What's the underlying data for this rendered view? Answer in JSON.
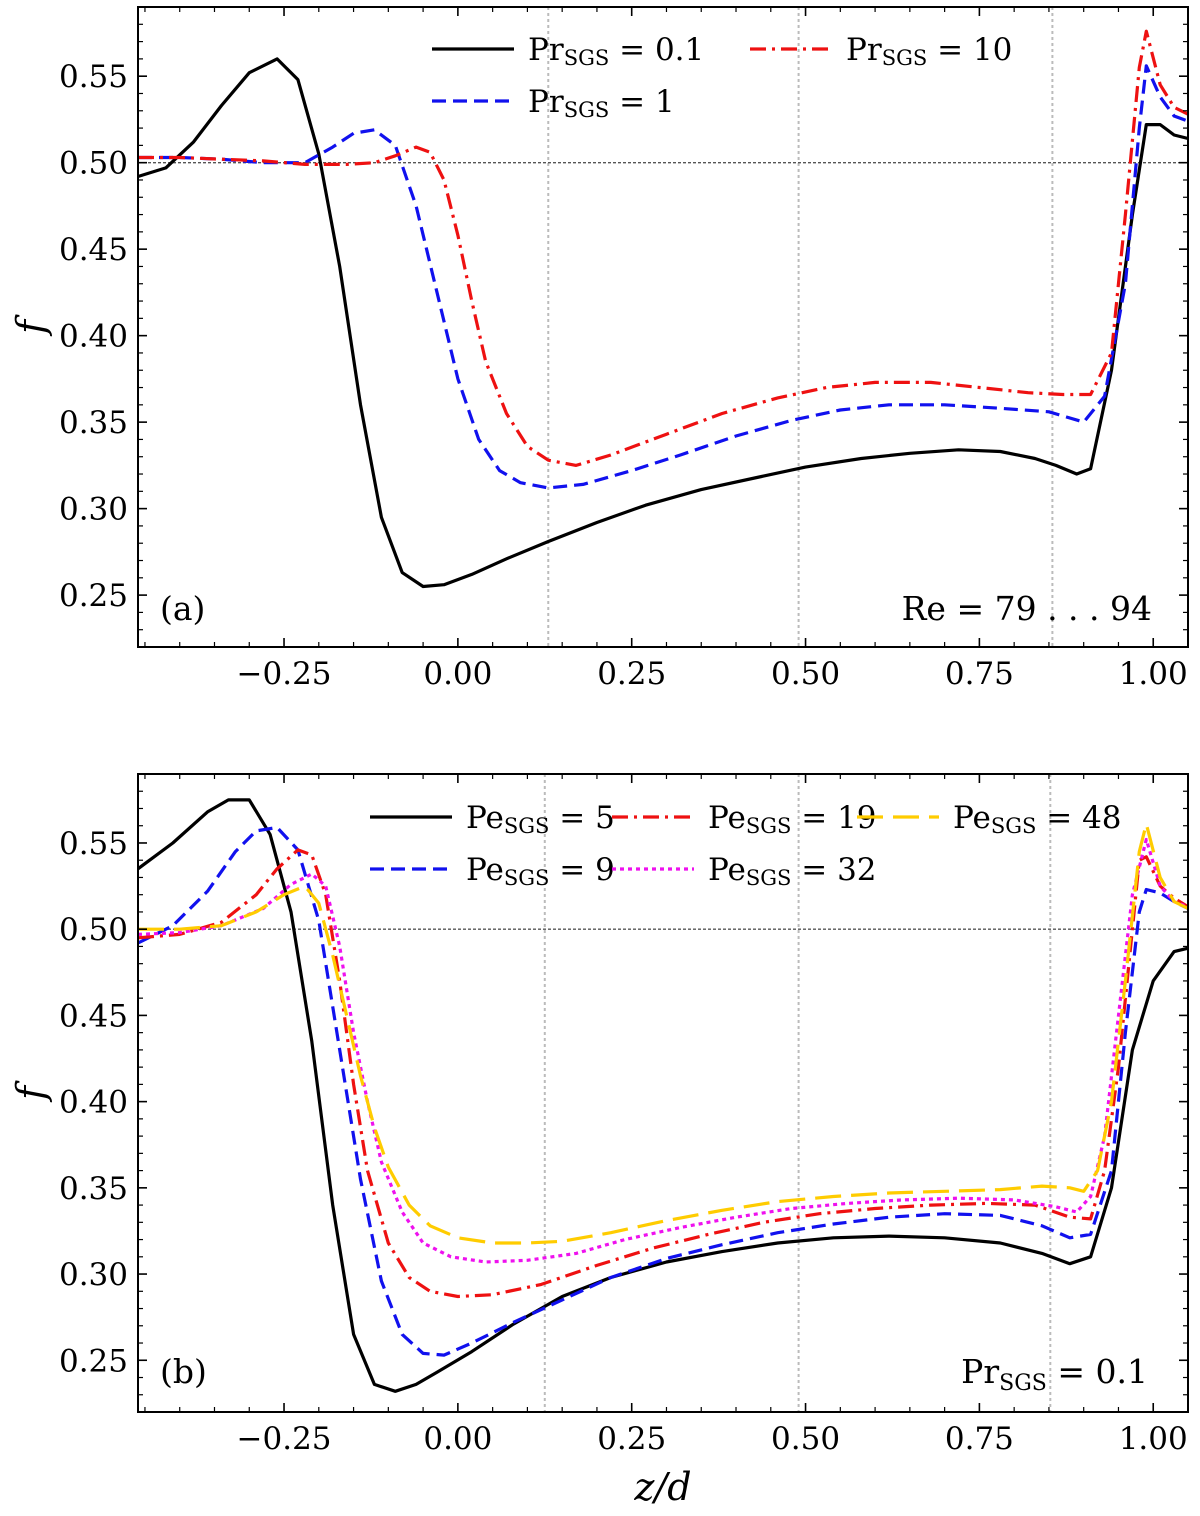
{
  "chart_data": [
    {
      "id": "a",
      "type": "line",
      "xlabel": "",
      "ylabel": "f",
      "xlim": [
        -0.46,
        1.05
      ],
      "ylim": [
        0.22,
        0.59
      ],
      "xticks": [
        -0.25,
        0.0,
        0.25,
        0.5,
        0.75,
        1.0
      ],
      "xtick_labels": [
        "−0.25",
        "0.00",
        "0.25",
        "0.50",
        "0.75",
        "1.00"
      ],
      "yticks": [
        0.25,
        0.3,
        0.35,
        0.4,
        0.45,
        0.5,
        0.55
      ],
      "ytick_labels": [
        "0.25",
        "0.30",
        "0.35",
        "0.40",
        "0.45",
        "0.50",
        "0.55"
      ],
      "hline": 0.5,
      "vlines": [
        0.13,
        0.49,
        0.855
      ],
      "panel_label": "(a)",
      "annotation": "Re = 79 . . . 94",
      "legend": {
        "placement": "top-right",
        "columns": 2
      },
      "series": [
        {
          "name": "Pr",
          "sub": "SGS",
          "value": "0.1",
          "color": "#000000",
          "dash": "solid",
          "x": [
            -0.46,
            -0.42,
            -0.38,
            -0.34,
            -0.3,
            -0.26,
            -0.23,
            -0.2,
            -0.17,
            -0.14,
            -0.11,
            -0.08,
            -0.05,
            -0.02,
            0.02,
            0.07,
            0.13,
            0.2,
            0.27,
            0.35,
            0.43,
            0.5,
            0.58,
            0.65,
            0.72,
            0.78,
            0.83,
            0.86,
            0.89,
            0.91,
            0.94,
            0.97,
            0.99,
            1.01,
            1.03,
            1.05
          ],
          "y": [
            0.492,
            0.497,
            0.512,
            0.533,
            0.552,
            0.56,
            0.548,
            0.505,
            0.44,
            0.36,
            0.295,
            0.263,
            0.255,
            0.256,
            0.262,
            0.271,
            0.281,
            0.292,
            0.302,
            0.311,
            0.318,
            0.324,
            0.329,
            0.332,
            0.334,
            0.333,
            0.329,
            0.325,
            0.32,
            0.323,
            0.38,
            0.47,
            0.522,
            0.522,
            0.516,
            0.514
          ]
        },
        {
          "name": "Pr",
          "sub": "SGS",
          "value": "1",
          "color": "#1111ee",
          "dash": "dashed",
          "x": [
            -0.46,
            -0.4,
            -0.34,
            -0.28,
            -0.22,
            -0.18,
            -0.15,
            -0.12,
            -0.09,
            -0.06,
            -0.03,
            0.0,
            0.03,
            0.06,
            0.09,
            0.13,
            0.18,
            0.25,
            0.32,
            0.4,
            0.48,
            0.55,
            0.62,
            0.7,
            0.78,
            0.85,
            0.9,
            0.93,
            0.96,
            0.98,
            0.99,
            1.01,
            1.03,
            1.05
          ],
          "y": [
            0.503,
            0.503,
            0.502,
            0.5,
            0.5,
            0.509,
            0.517,
            0.519,
            0.51,
            0.475,
            0.425,
            0.375,
            0.34,
            0.322,
            0.315,
            0.312,
            0.314,
            0.322,
            0.331,
            0.342,
            0.351,
            0.357,
            0.36,
            0.36,
            0.358,
            0.356,
            0.35,
            0.365,
            0.43,
            0.52,
            0.556,
            0.538,
            0.527,
            0.524
          ]
        },
        {
          "name": "Pr",
          "sub": "SGS",
          "value": "10",
          "color": "#ee1111",
          "dash": "dashdot",
          "x": [
            -0.46,
            -0.4,
            -0.34,
            -0.28,
            -0.22,
            -0.16,
            -0.12,
            -0.09,
            -0.06,
            -0.04,
            -0.02,
            0.0,
            0.02,
            0.04,
            0.07,
            0.1,
            0.13,
            0.17,
            0.22,
            0.3,
            0.38,
            0.46,
            0.53,
            0.6,
            0.68,
            0.75,
            0.82,
            0.87,
            0.91,
            0.94,
            0.96,
            0.98,
            0.99,
            1.01,
            1.03,
            1.05
          ],
          "y": [
            0.503,
            0.503,
            0.502,
            0.501,
            0.499,
            0.499,
            0.5,
            0.504,
            0.509,
            0.506,
            0.49,
            0.458,
            0.42,
            0.385,
            0.355,
            0.336,
            0.328,
            0.325,
            0.331,
            0.343,
            0.355,
            0.364,
            0.37,
            0.373,
            0.373,
            0.37,
            0.367,
            0.366,
            0.366,
            0.39,
            0.47,
            0.555,
            0.576,
            0.545,
            0.532,
            0.528
          ]
        }
      ]
    },
    {
      "id": "b",
      "type": "line",
      "xlabel": "z/d",
      "ylabel": "f",
      "xlim": [
        -0.46,
        1.05
      ],
      "ylim": [
        0.22,
        0.59
      ],
      "xticks": [
        -0.25,
        0.0,
        0.25,
        0.5,
        0.75,
        1.0
      ],
      "xtick_labels": [
        "−0.25",
        "0.00",
        "0.25",
        "0.50",
        "0.75",
        "1.00"
      ],
      "yticks": [
        0.25,
        0.3,
        0.35,
        0.4,
        0.45,
        0.5,
        0.55
      ],
      "ytick_labels": [
        "0.25",
        "0.30",
        "0.35",
        "0.40",
        "0.45",
        "0.50",
        "0.55"
      ],
      "hline": 0.5,
      "vlines": [
        0.125,
        0.49,
        0.852
      ],
      "panel_label": "(b)",
      "annotation_main": "Pr",
      "annotation_sub": "SGS",
      "annotation_tail": " = 0.1",
      "legend": {
        "placement": "top-right",
        "columns": 3
      },
      "series": [
        {
          "name": "Pe",
          "sub": "SGS",
          "value": "5",
          "color": "#000000",
          "dash": "solid",
          "x": [
            -0.46,
            -0.41,
            -0.36,
            -0.33,
            -0.3,
            -0.27,
            -0.24,
            -0.21,
            -0.18,
            -0.15,
            -0.12,
            -0.09,
            -0.06,
            -0.03,
            0.02,
            0.08,
            0.15,
            0.22,
            0.3,
            0.38,
            0.46,
            0.54,
            0.62,
            0.7,
            0.78,
            0.84,
            0.88,
            0.91,
            0.94,
            0.97,
            1.0,
            1.03,
            1.05
          ],
          "y": [
            0.535,
            0.55,
            0.568,
            0.575,
            0.575,
            0.555,
            0.51,
            0.435,
            0.34,
            0.265,
            0.236,
            0.232,
            0.236,
            0.243,
            0.255,
            0.271,
            0.287,
            0.298,
            0.307,
            0.313,
            0.318,
            0.321,
            0.322,
            0.321,
            0.318,
            0.312,
            0.306,
            0.31,
            0.35,
            0.43,
            0.47,
            0.487,
            0.489
          ]
        },
        {
          "name": "Pe",
          "sub": "SGS",
          "value": "9",
          "color": "#1111ee",
          "dash": "dashed",
          "x": [
            -0.46,
            -0.41,
            -0.36,
            -0.32,
            -0.29,
            -0.26,
            -0.23,
            -0.2,
            -0.17,
            -0.14,
            -0.11,
            -0.08,
            -0.05,
            -0.02,
            0.02,
            0.08,
            0.15,
            0.22,
            0.3,
            0.38,
            0.46,
            0.54,
            0.62,
            0.7,
            0.78,
            0.84,
            0.88,
            0.91,
            0.94,
            0.96,
            0.98,
            0.99,
            1.01,
            1.03,
            1.05
          ],
          "y": [
            0.492,
            0.502,
            0.522,
            0.545,
            0.557,
            0.559,
            0.546,
            0.505,
            0.43,
            0.355,
            0.296,
            0.265,
            0.254,
            0.253,
            0.26,
            0.272,
            0.285,
            0.298,
            0.309,
            0.317,
            0.324,
            0.329,
            0.333,
            0.335,
            0.334,
            0.328,
            0.321,
            0.323,
            0.36,
            0.44,
            0.51,
            0.523,
            0.521,
            0.516,
            0.512
          ]
        },
        {
          "name": "Pe",
          "sub": "SGS",
          "value": "19",
          "color": "#ee1111",
          "dash": "dashdot",
          "x": [
            -0.46,
            -0.4,
            -0.34,
            -0.29,
            -0.26,
            -0.23,
            -0.21,
            -0.19,
            -0.17,
            -0.15,
            -0.13,
            -0.1,
            -0.07,
            -0.04,
            0.0,
            0.05,
            0.12,
            0.2,
            0.28,
            0.36,
            0.44,
            0.52,
            0.6,
            0.68,
            0.76,
            0.83,
            0.88,
            0.91,
            0.93,
            0.95,
            0.97,
            0.98,
            0.99,
            1.01,
            1.03,
            1.05
          ],
          "y": [
            0.495,
            0.497,
            0.504,
            0.52,
            0.535,
            0.546,
            0.543,
            0.52,
            0.47,
            0.41,
            0.36,
            0.318,
            0.298,
            0.29,
            0.287,
            0.288,
            0.294,
            0.305,
            0.315,
            0.323,
            0.33,
            0.335,
            0.338,
            0.34,
            0.341,
            0.34,
            0.333,
            0.332,
            0.36,
            0.42,
            0.5,
            0.54,
            0.542,
            0.525,
            0.518,
            0.513
          ]
        },
        {
          "name": "Pe",
          "sub": "SGS",
          "value": "32",
          "color": "#ee11ee",
          "dash": "dotted",
          "x": [
            -0.46,
            -0.4,
            -0.34,
            -0.28,
            -0.24,
            -0.21,
            -0.19,
            -0.17,
            -0.15,
            -0.13,
            -0.11,
            -0.08,
            -0.05,
            -0.01,
            0.04,
            0.1,
            0.17,
            0.24,
            0.32,
            0.4,
            0.48,
            0.56,
            0.64,
            0.72,
            0.8,
            0.86,
            0.89,
            0.91,
            0.93,
            0.95,
            0.97,
            0.99,
            1.01,
            1.03,
            1.05
          ],
          "y": [
            0.497,
            0.498,
            0.502,
            0.512,
            0.526,
            0.532,
            0.525,
            0.49,
            0.44,
            0.4,
            0.365,
            0.336,
            0.318,
            0.31,
            0.307,
            0.308,
            0.312,
            0.32,
            0.327,
            0.333,
            0.338,
            0.341,
            0.343,
            0.344,
            0.343,
            0.339,
            0.336,
            0.345,
            0.38,
            0.45,
            0.52,
            0.552,
            0.525,
            0.516,
            0.513
          ]
        },
        {
          "name": "Pe",
          "sub": "SGS",
          "value": "48",
          "color": "#ffcc00",
          "dash": "longdash",
          "x": [
            -0.46,
            -0.4,
            -0.34,
            -0.29,
            -0.25,
            -0.22,
            -0.2,
            -0.18,
            -0.16,
            -0.14,
            -0.12,
            -0.1,
            -0.07,
            -0.04,
            0.0,
            0.05,
            0.1,
            0.15,
            0.22,
            0.3,
            0.38,
            0.46,
            0.54,
            0.62,
            0.7,
            0.78,
            0.84,
            0.88,
            0.9,
            0.92,
            0.94,
            0.96,
            0.98,
            0.99,
            1.01,
            1.03,
            1.05
          ],
          "y": [
            0.5,
            0.5,
            0.502,
            0.51,
            0.52,
            0.525,
            0.515,
            0.485,
            0.45,
            0.415,
            0.385,
            0.362,
            0.34,
            0.328,
            0.321,
            0.318,
            0.318,
            0.319,
            0.324,
            0.331,
            0.337,
            0.342,
            0.345,
            0.347,
            0.348,
            0.349,
            0.351,
            0.35,
            0.348,
            0.36,
            0.4,
            0.47,
            0.545,
            0.561,
            0.53,
            0.516,
            0.512
          ]
        }
      ]
    }
  ]
}
